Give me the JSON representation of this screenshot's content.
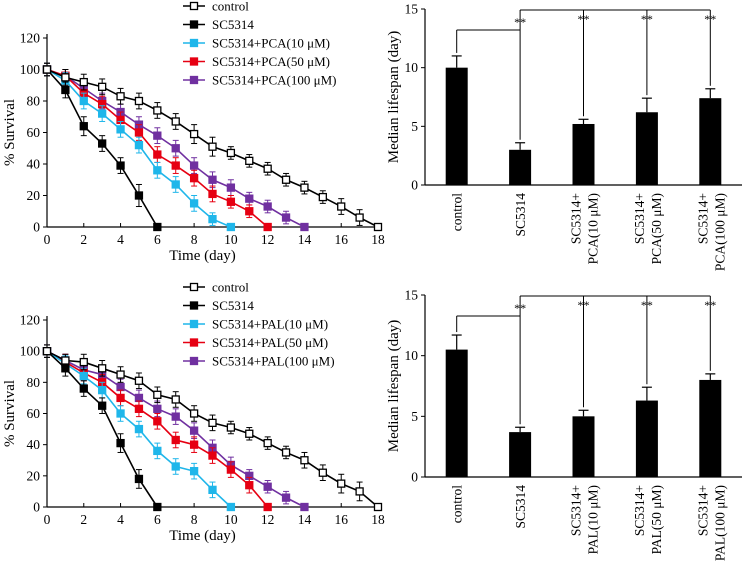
{
  "chart_data": [
    {
      "type": "line",
      "panel": "survival-pca",
      "xlabel": "Time (day)",
      "ylabel": "% Survival",
      "xlim": [
        0,
        18
      ],
      "ylim": [
        0,
        120
      ],
      "xticks": [
        "0",
        "2",
        "4",
        "6",
        "8",
        "10",
        "12",
        "14",
        "16",
        "18"
      ],
      "yticks": [
        "0",
        "20",
        "40",
        "60",
        "80",
        "100",
        "120"
      ],
      "legend_position": "top-center",
      "series": [
        {
          "name": "control",
          "color": "#000000",
          "marker": "open-square",
          "x": [
            0,
            1,
            2,
            3,
            4,
            5,
            6,
            7,
            8,
            9,
            10,
            11,
            12,
            13,
            14,
            15,
            16,
            17,
            18
          ],
          "y": [
            100,
            95,
            92,
            89,
            83,
            80,
            74,
            67,
            59,
            51,
            47,
            42,
            37,
            30,
            25,
            19,
            13,
            6,
            0
          ],
          "err": [
            4,
            5,
            5,
            5,
            5,
            5,
            5,
            5,
            6,
            6,
            4,
            4,
            4,
            4,
            4,
            4,
            5,
            5,
            0
          ]
        },
        {
          "name": "SC5314",
          "color": "#000000",
          "marker": "filled-square",
          "x": [
            0,
            1,
            2,
            3,
            4,
            5,
            6
          ],
          "y": [
            100,
            87,
            64,
            53,
            39,
            20,
            0
          ],
          "err": [
            4,
            5,
            6,
            5,
            5,
            7,
            0
          ]
        },
        {
          "name": "SC5314+PCA(10 μM)",
          "color": "#1fb6ea",
          "marker": "filled-square",
          "x": [
            0,
            1,
            2,
            3,
            4,
            5,
            6,
            7,
            8,
            9,
            10
          ],
          "y": [
            100,
            93,
            80,
            72,
            62,
            52,
            36,
            27,
            15,
            5,
            0
          ],
          "err": [
            4,
            5,
            5,
            5,
            5,
            5,
            5,
            5,
            5,
            4,
            0
          ]
        },
        {
          "name": "SC5314+PCA(50 μM)",
          "color": "#e60012",
          "marker": "filled-square",
          "x": [
            0,
            1,
            2,
            3,
            4,
            5,
            6,
            7,
            8,
            9,
            10,
            11,
            12
          ],
          "y": [
            100,
            96,
            85,
            78,
            68,
            60,
            46,
            39,
            31,
            21,
            16,
            10,
            0
          ],
          "err": [
            4,
            4,
            5,
            5,
            5,
            5,
            5,
            5,
            5,
            5,
            4,
            4,
            0
          ]
        },
        {
          "name": "SC5314+PCA(100 μM)",
          "color": "#7030a0",
          "marker": "filled-square",
          "x": [
            0,
            1,
            2,
            3,
            4,
            5,
            6,
            7,
            8,
            9,
            10,
            11,
            12,
            13,
            14
          ],
          "y": [
            100,
            96,
            88,
            80,
            73,
            65,
            58,
            50,
            39,
            30,
            25,
            18,
            13,
            6,
            0
          ],
          "err": [
            4,
            4,
            5,
            5,
            5,
            5,
            5,
            5,
            5,
            5,
            5,
            4,
            4,
            4,
            0
          ]
        }
      ]
    },
    {
      "type": "bar",
      "panel": "lifespan-pca",
      "ylabel": "Median lifespan (day)",
      "ylim": [
        0,
        15
      ],
      "yticks": [
        "0",
        "5",
        "10",
        "15"
      ],
      "categories": [
        "control",
        "SC5314",
        "SC5314+\nPCA(10 μM)",
        "SC5314+\nPCA(50 μM)",
        "SC5314+\nPCA(100 μM)"
      ],
      "values": [
        10,
        3,
        5.2,
        6.2,
        7.4
      ],
      "errors": [
        1.0,
        0.6,
        0.4,
        1.2,
        0.8
      ],
      "significance": [
        {
          "from": "control",
          "to": "SC5314",
          "label": "**"
        },
        {
          "from": "SC5314",
          "to": "SC5314+\nPCA(10 μM)",
          "label": "**"
        },
        {
          "from": "SC5314",
          "to": "SC5314+\nPCA(50 μM)",
          "label": "**"
        },
        {
          "from": "SC5314",
          "to": "SC5314+\nPCA(100 μM)",
          "label": "**"
        }
      ]
    },
    {
      "type": "line",
      "panel": "survival-pal",
      "xlabel": "Time (day)",
      "ylabel": "% Survival",
      "xlim": [
        0,
        18
      ],
      "ylim": [
        0,
        120
      ],
      "xticks": [
        "0",
        "2",
        "4",
        "6",
        "8",
        "10",
        "12",
        "14",
        "16",
        "18"
      ],
      "yticks": [
        "0",
        "20",
        "40",
        "60",
        "80",
        "100",
        "120"
      ],
      "legend_position": "top-center",
      "series": [
        {
          "name": "control",
          "color": "#000000",
          "marker": "open-square",
          "x": [
            0,
            1,
            2,
            3,
            4,
            5,
            6,
            7,
            8,
            9,
            10,
            11,
            12,
            13,
            14,
            15,
            16,
            17,
            18
          ],
          "y": [
            100,
            94,
            93,
            89,
            85,
            81,
            72,
            69,
            60,
            54,
            51,
            47,
            41,
            35,
            30,
            22,
            15,
            10,
            0
          ],
          "err": [
            4,
            4,
            5,
            5,
            5,
            5,
            5,
            5,
            5,
            5,
            4,
            4,
            4,
            4,
            5,
            5,
            6,
            6,
            0
          ]
        },
        {
          "name": "SC5314",
          "color": "#000000",
          "marker": "filled-square",
          "x": [
            0,
            1,
            2,
            3,
            4,
            5,
            6
          ],
          "y": [
            100,
            89,
            76,
            65,
            41,
            18,
            0
          ],
          "err": [
            4,
            5,
            5,
            5,
            6,
            6,
            0
          ]
        },
        {
          "name": "SC5314+PAL(10 μM)",
          "color": "#1fb6ea",
          "marker": "filled-square",
          "x": [
            0,
            1,
            2,
            3,
            4,
            5,
            6,
            7,
            8,
            9,
            10
          ],
          "y": [
            100,
            92,
            84,
            75,
            60,
            50,
            36,
            26,
            23,
            11,
            0
          ],
          "err": [
            4,
            5,
            5,
            5,
            5,
            5,
            5,
            5,
            5,
            5,
            0
          ]
        },
        {
          "name": "SC5314+PAL(50 μM)",
          "color": "#e60012",
          "marker": "filled-square",
          "x": [
            0,
            1,
            2,
            3,
            4,
            5,
            6,
            7,
            8,
            9,
            10,
            11,
            12
          ],
          "y": [
            100,
            93,
            86,
            80,
            70,
            63,
            55,
            43,
            40,
            33,
            24,
            14,
            0
          ],
          "err": [
            4,
            5,
            5,
            5,
            5,
            5,
            5,
            5,
            5,
            5,
            5,
            5,
            0
          ]
        },
        {
          "name": "SC5314+PAL(100 μM)",
          "color": "#7030a0",
          "marker": "filled-square",
          "x": [
            0,
            1,
            2,
            3,
            4,
            5,
            6,
            7,
            8,
            9,
            10,
            11,
            12,
            13,
            14
          ],
          "y": [
            100,
            94,
            88,
            85,
            77,
            70,
            63,
            58,
            49,
            38,
            27,
            20,
            13,
            6,
            0
          ],
          "err": [
            4,
            4,
            5,
            5,
            5,
            5,
            5,
            5,
            5,
            5,
            5,
            4,
            4,
            4,
            0
          ]
        }
      ]
    },
    {
      "type": "bar",
      "panel": "lifespan-pal",
      "ylabel": "Median lifespan (day)",
      "ylim": [
        0,
        15
      ],
      "yticks": [
        "0",
        "5",
        "10",
        "15"
      ],
      "categories": [
        "control",
        "SC5314",
        "SC5314+\nPAL(10 μM)",
        "SC5314+\nPAL(50 μM)",
        "SC5314+\nPAL(100 μM)"
      ],
      "values": [
        10.5,
        3.7,
        5.0,
        6.3,
        8.0
      ],
      "errors": [
        1.2,
        0.4,
        0.5,
        1.1,
        0.5
      ],
      "significance": [
        {
          "from": "control",
          "to": "SC5314",
          "label": "**"
        },
        {
          "from": "SC5314",
          "to": "SC5314+\nPAL(10 μM)",
          "label": "**"
        },
        {
          "from": "SC5314",
          "to": "SC5314+\nPAL(50 μM)",
          "label": "**"
        },
        {
          "from": "SC5314",
          "to": "SC5314+\nPAL(100 μM)",
          "label": "**"
        }
      ]
    }
  ]
}
